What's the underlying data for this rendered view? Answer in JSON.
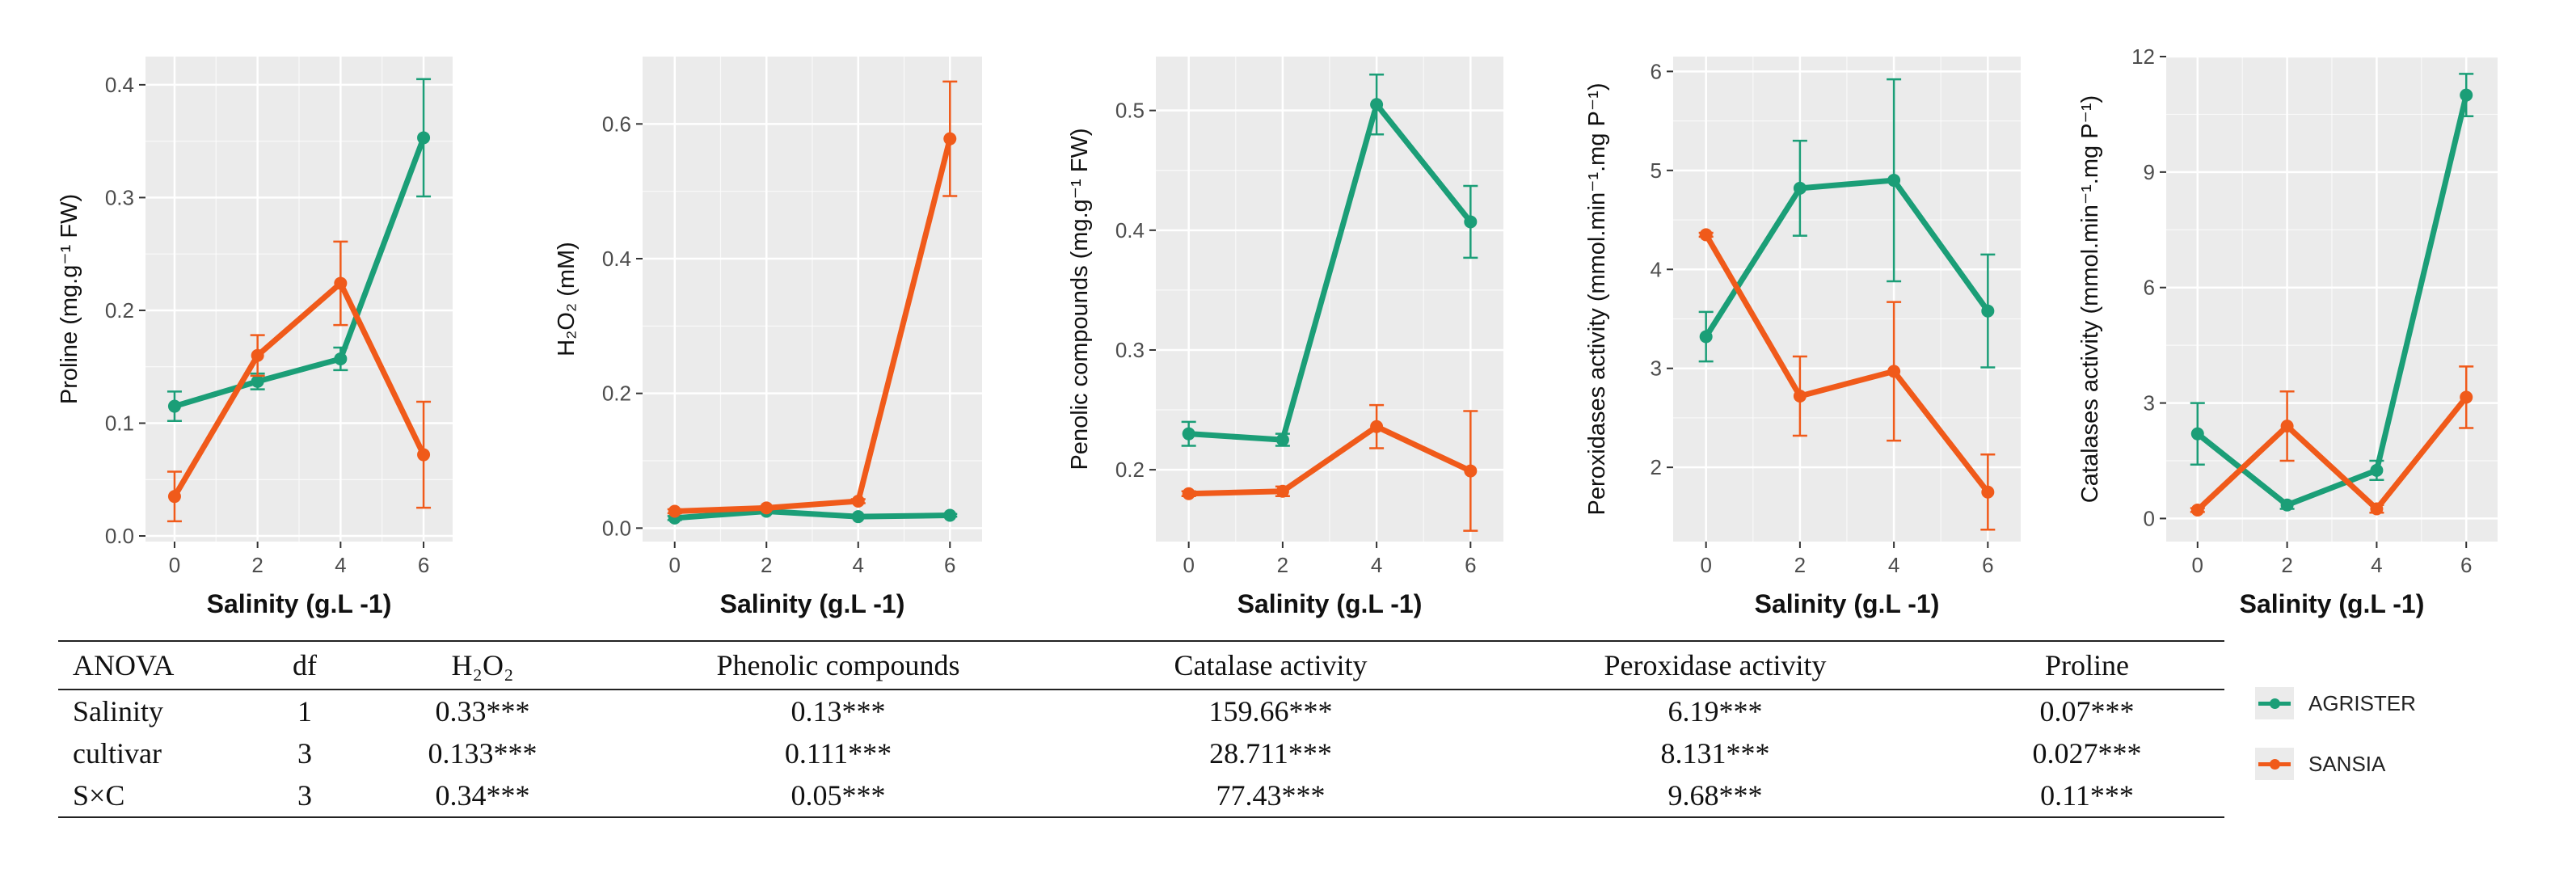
{
  "colors": {
    "agrister": "#1b9e77",
    "sansia": "#f05a1a",
    "panel": "#ebebeb",
    "grid": "#ffffff",
    "text": "#4d4d4d"
  },
  "legend": {
    "items": [
      {
        "label": "AGRISTER",
        "color": "#1b9e77"
      },
      {
        "label": "SANSIA",
        "color": "#f05a1a"
      }
    ]
  },
  "chart_data": [
    {
      "type": "line",
      "ylabel": "Proline (mg.g⁻¹ FW)",
      "xlabel": "Salinity (g.L -1)",
      "x": [
        0,
        2,
        4,
        6
      ],
      "xticks": [
        "0",
        "2",
        "4",
        "6"
      ],
      "xlim": [
        -0.7,
        6.7
      ],
      "ylim": [
        -0.005,
        0.425
      ],
      "yticks": [
        0.0,
        0.1,
        0.2,
        0.3,
        0.4
      ],
      "yticklabels": [
        "0.0",
        "0.1",
        "0.2",
        "0.3",
        "0.4"
      ],
      "series": [
        {
          "name": "AGRISTER",
          "values": [
            0.115,
            0.137,
            0.157,
            0.353
          ],
          "errors": [
            0.013,
            0.007,
            0.01,
            0.052
          ]
        },
        {
          "name": "SANSIA",
          "values": [
            0.035,
            0.16,
            0.224,
            0.072
          ],
          "errors": [
            0.022,
            0.018,
            0.037,
            0.047
          ]
        }
      ]
    },
    {
      "type": "line",
      "ylabel": "H₂O₂ (mM)",
      "xlabel": "Salinity (g.L -1)",
      "x": [
        0,
        2,
        4,
        6
      ],
      "xticks": [
        "0",
        "2",
        "4",
        "6"
      ],
      "xlim": [
        -0.7,
        6.7
      ],
      "ylim": [
        -0.02,
        0.7
      ],
      "yticks": [
        0.0,
        0.2,
        0.4,
        0.6
      ],
      "yticklabels": [
        "0.0",
        "0.2",
        "0.4",
        "0.6"
      ],
      "series": [
        {
          "name": "AGRISTER",
          "values": [
            0.015,
            0.025,
            0.017,
            0.019
          ],
          "errors": [
            0.003,
            0.002,
            0.002,
            0.002
          ]
        },
        {
          "name": "SANSIA",
          "values": [
            0.025,
            0.03,
            0.04,
            0.578
          ],
          "errors": [
            0.003,
            0.002,
            0.003,
            0.085
          ]
        }
      ]
    },
    {
      "type": "line",
      "ylabel": "Penolic compounds (mg.g⁻¹ FW)",
      "xlabel": "Salinity (g.L -1)",
      "x": [
        0,
        2,
        4,
        6
      ],
      "xticks": [
        "0",
        "2",
        "4",
        "6"
      ],
      "xlim": [
        -0.7,
        6.7
      ],
      "ylim": [
        0.14,
        0.545
      ],
      "yticks": [
        0.2,
        0.3,
        0.4,
        0.5
      ],
      "yticklabels": [
        "0.2",
        "0.3",
        "0.4",
        "0.5"
      ],
      "series": [
        {
          "name": "AGRISTER",
          "values": [
            0.23,
            0.225,
            0.505,
            0.407
          ],
          "errors": [
            0.01,
            0.005,
            0.025,
            0.03
          ]
        },
        {
          "name": "SANSIA",
          "values": [
            0.18,
            0.182,
            0.236,
            0.199
          ],
          "errors": [
            0.002,
            0.004,
            0.018,
            0.05
          ]
        }
      ]
    },
    {
      "type": "line",
      "ylabel": "Peroxidases activity (mmol.min⁻¹.mg P⁻¹)",
      "xlabel": "Salinity (g.L -1)",
      "x": [
        0,
        2,
        4,
        6
      ],
      "xticks": [
        "0",
        "2",
        "4",
        "6"
      ],
      "xlim": [
        -0.7,
        6.7
      ],
      "ylim": [
        1.25,
        6.15
      ],
      "yticks": [
        2,
        3,
        4,
        5,
        6
      ],
      "yticklabels": [
        "2",
        "3",
        "4",
        "5",
        "6"
      ],
      "series": [
        {
          "name": "AGRISTER",
          "values": [
            3.32,
            4.82,
            4.9,
            3.58
          ],
          "errors": [
            0.25,
            0.48,
            1.02,
            0.57
          ]
        },
        {
          "name": "SANSIA",
          "values": [
            4.35,
            2.72,
            2.97,
            1.75
          ],
          "errors": [
            0.02,
            0.4,
            0.7,
            0.38
          ]
        }
      ]
    },
    {
      "type": "line",
      "ylabel": "Catalases activity (mmol.min⁻¹.mg P⁻¹)",
      "xlabel": "Salinity (g.L -1)",
      "x": [
        0,
        2,
        4,
        6
      ],
      "xticks": [
        "0",
        "2",
        "4",
        "6"
      ],
      "xlim": [
        -0.7,
        6.7
      ],
      "ylim": [
        -0.6,
        12.0
      ],
      "yticks": [
        0,
        3,
        6,
        9,
        12
      ],
      "yticklabels": [
        "0",
        "3",
        "6",
        "9",
        "12"
      ],
      "series": [
        {
          "name": "AGRISTER",
          "values": [
            2.2,
            0.35,
            1.25,
            11.0
          ],
          "errors": [
            0.8,
            0.1,
            0.25,
            0.55
          ]
        },
        {
          "name": "SANSIA",
          "values": [
            0.22,
            2.4,
            0.25,
            3.15
          ],
          "errors": [
            0.05,
            0.9,
            0.1,
            0.8
          ]
        }
      ]
    }
  ],
  "anova": {
    "headers": [
      "ANOVA",
      "df",
      "H₂O₂",
      "Phenolic compounds",
      "Catalase activity",
      "Peroxidase activity",
      "Proline"
    ],
    "rows": [
      [
        "Salinity",
        "1",
        "0.33***",
        "0.13***",
        "159.66***",
        "6.19***",
        "0.07***"
      ],
      [
        "cultivar",
        "3",
        "0.133***",
        "0.111***",
        "28.711***",
        "8.131***",
        "0.027***"
      ],
      [
        "S×C",
        "3",
        "0.34***",
        "0.05***",
        "77.43***",
        "9.68***",
        "0.11***"
      ]
    ]
  }
}
